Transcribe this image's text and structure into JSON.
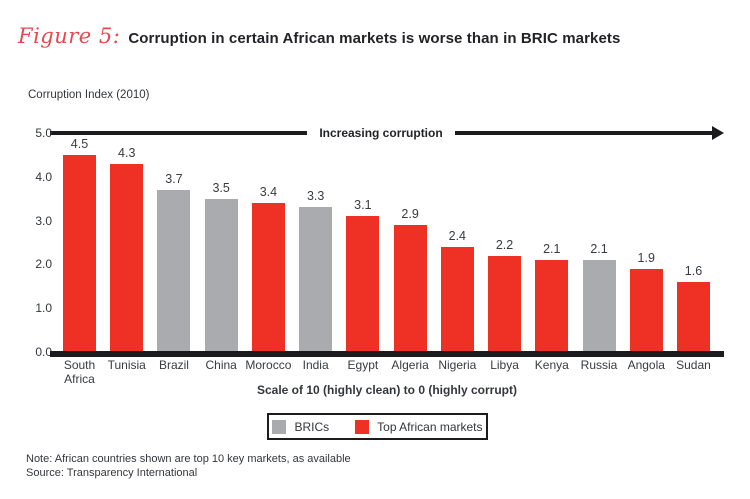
{
  "header": {
    "figure_label": "Figure 5:",
    "title": "Corruption in certain African markets is worse than in BRIC markets"
  },
  "chart": {
    "axis_title": "Corruption Index (2010)",
    "arrow_label": "Increasing corruption",
    "x_caption": "Scale of 10 (highly clean) to 0 (highly corrupt)"
  },
  "legend": {
    "items": [
      {
        "label": "BRICs",
        "group": "bric"
      },
      {
        "label": "Top African markets",
        "group": "african"
      }
    ]
  },
  "footer": {
    "note": "Note: African countries shown are top 10 key markets, as available",
    "source": "Source: Transparency International"
  },
  "colors": {
    "african": "#ee3124",
    "bric": "#a9abae",
    "figure_label_red": "#e8474f",
    "line_black": "#1c1c1e",
    "text_dark": "#383b40"
  },
  "chart_data": {
    "type": "bar",
    "title": "Corruption Index (2010)",
    "ylabel": "Corruption Index (2010)",
    "xlabel": "Scale of 10 (highly clean) to 0 (highly corrupt)",
    "annotation": "Increasing corruption",
    "ylim": [
      0,
      5
    ],
    "yticks": [
      5.0,
      4.0,
      3.0,
      2.0,
      1.0,
      0.0
    ],
    "grid": false,
    "legend_position": "bottom",
    "bars": [
      {
        "category": "South Africa",
        "value": 4.5,
        "group": "african"
      },
      {
        "category": "Tunisia",
        "value": 4.3,
        "group": "african"
      },
      {
        "category": "Brazil",
        "value": 3.7,
        "group": "bric"
      },
      {
        "category": "China",
        "value": 3.5,
        "group": "bric"
      },
      {
        "category": "Morocco",
        "value": 3.4,
        "group": "african"
      },
      {
        "category": "India",
        "value": 3.3,
        "group": "bric"
      },
      {
        "category": "Egypt",
        "value": 3.1,
        "group": "african"
      },
      {
        "category": "Algeria",
        "value": 2.9,
        "group": "african"
      },
      {
        "category": "Nigeria",
        "value": 2.4,
        "group": "african"
      },
      {
        "category": "Libya",
        "value": 2.2,
        "group": "african"
      },
      {
        "category": "Kenya",
        "value": 2.1,
        "group": "african"
      },
      {
        "category": "Russia",
        "value": 2.1,
        "group": "bric"
      },
      {
        "category": "Angola",
        "value": 1.9,
        "group": "african"
      },
      {
        "category": "Sudan",
        "value": 1.6,
        "group": "african"
      }
    ]
  }
}
